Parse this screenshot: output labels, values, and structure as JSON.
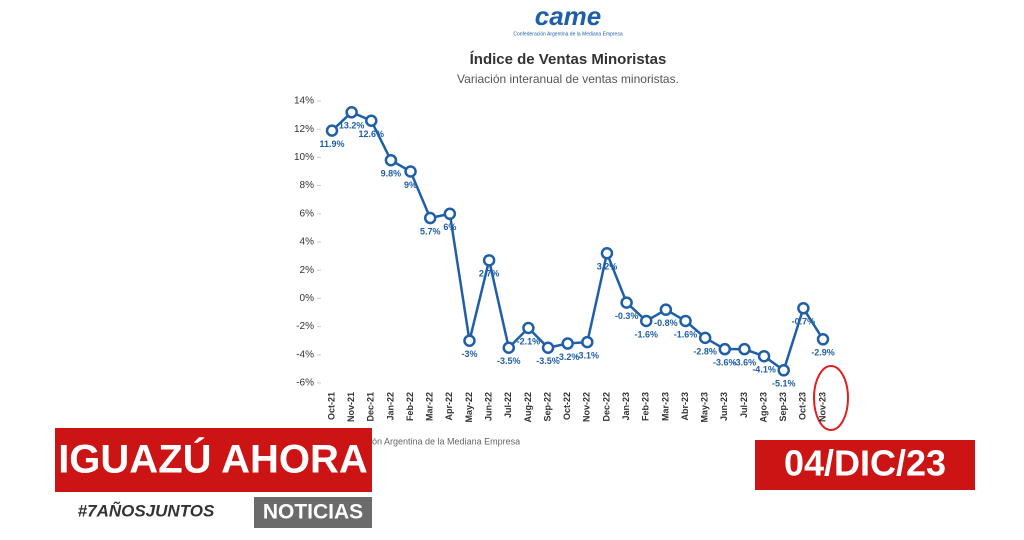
{
  "logo": {
    "name": "came",
    "tagline": "Confederación Argentina de la Mediana Empresa"
  },
  "chart_data": {
    "type": "line",
    "title": "Índice de Ventas Minoristas",
    "subtitle": "Variación interanual de ventas minoristas.",
    "source": "ón Argentina de la Mediana Empresa",
    "categories": [
      "Oct-21",
      "Nov-21",
      "Dec-21",
      "Jan-22",
      "Feb-22",
      "Mar-22",
      "Apr-22",
      "May-22",
      "Jun-22",
      "Jul-22",
      "Aug-22",
      "Sep-22",
      "Oct-22",
      "Nov-22",
      "Dec-22",
      "Jan-23",
      "Feb-23",
      "Mar-23",
      "Abr-23",
      "May-23",
      "Jun-23",
      "Jul-23",
      "Ago-23",
      "Sep-23",
      "Oct-23",
      "Nov-23"
    ],
    "series": [
      {
        "name": "Índice de Ventas Minoristas",
        "color": "#1f5fa8",
        "values": [
          11.9,
          13.2,
          12.6,
          9.8,
          9,
          5.7,
          6,
          -3,
          2.7,
          -3.5,
          -2.1,
          -3.5,
          -3.2,
          -3.1,
          3.2,
          -0.3,
          -1.6,
          -0.8,
          -1.6,
          -2.8,
          -3.6,
          -3.6,
          -4.1,
          -5.1,
          -0.7,
          -2.9
        ],
        "value_labels": [
          "11.9%",
          "13.2%",
          "12.6%",
          "9.8%",
          "9%",
          "5.7%",
          "6%",
          "-3%",
          "2.7%",
          "-3.5%",
          "-2.1%",
          "-3.5%",
          "-3.2%",
          "-3.1%",
          "3.2%",
          "-0.3%",
          "-1.6%",
          "-0.8%",
          "-1.6%",
          "-2.8%",
          "-3.6%",
          "-3.6%",
          "-4.1%",
          "-5.1%",
          "-0.7%",
          "-2.9%"
        ]
      }
    ],
    "ylim": [
      -6,
      14
    ],
    "yticks": [
      {
        "value": -6,
        "label": "-6%"
      },
      {
        "value": -4,
        "label": "-4%"
      },
      {
        "value": -2,
        "label": "-2%"
      },
      {
        "value": 0,
        "label": "0%"
      },
      {
        "value": 2,
        "label": "2%"
      },
      {
        "value": 4,
        "label": "4%"
      },
      {
        "value": 6,
        "label": "6%"
      },
      {
        "value": 8,
        "label": "8%"
      },
      {
        "value": 10,
        "label": "10%"
      },
      {
        "value": 12,
        "label": "12%"
      },
      {
        "value": 14,
        "label": "14%"
      }
    ],
    "grid": false
  },
  "banner": {
    "brand": "IGUAZÚ AHORA",
    "hashtag": "#7AÑOSJUNTOS",
    "section": "NOTICIAS",
    "date": "04/DIC/23"
  }
}
